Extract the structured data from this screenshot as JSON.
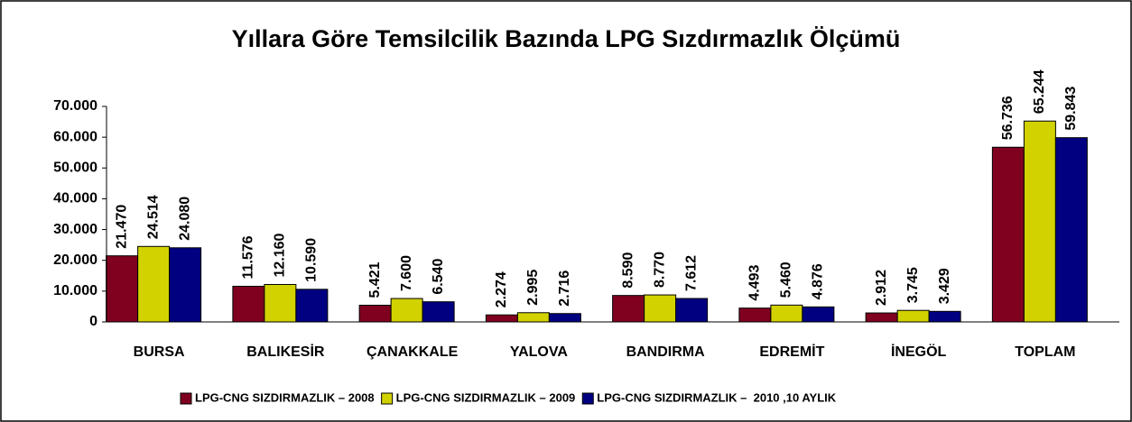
{
  "chart_data": {
    "type": "bar",
    "title": "Yıllara Göre Temsilcilik Bazında LPG Sızdırmazlık Ölçümü",
    "categories": [
      "BURSA",
      "BALIKESİR",
      "ÇANAKKALE",
      "YALOVA",
      "BANDIRMA",
      "EDREMİT",
      "İNEGÖL",
      "TOPLAM"
    ],
    "series": [
      {
        "name": "LPG-CNG SIZDIRMAZLIK – 2008",
        "color": "#800020",
        "values": [
          21470,
          11576,
          5421,
          2274,
          8590,
          4493,
          2912,
          56736
        ],
        "value_labels": [
          "21.470",
          "11.576",
          "5.421",
          "2.274",
          "8.590",
          "4.493",
          "2.912",
          "56.736"
        ]
      },
      {
        "name": "LPG-CNG SIZDIRMAZLIK – 2009",
        "color": "#d2d200",
        "values": [
          24514,
          12160,
          7600,
          2995,
          8770,
          5460,
          3745,
          65244
        ],
        "value_labels": [
          "24.514",
          "12.160",
          "7.600",
          "2.995",
          "8.770",
          "5.460",
          "3.745",
          "65.244"
        ]
      },
      {
        "name": "LPG-CNG SIZDIRMAZLIK –  2010 ,10 AYLIK",
        "color": "#000080",
        "values": [
          24080,
          10590,
          6540,
          2716,
          7612,
          4876,
          3429,
          59843
        ],
        "value_labels": [
          "24.080",
          "10.590",
          "6.540",
          "2.716",
          "7.612",
          "4.876",
          "3.429",
          "59.843"
        ]
      }
    ],
    "ylim": [
      0,
      70000
    ],
    "yticks": [
      0,
      {
        "value": 10000,
        "label": "10.000"
      },
      {
        "value": 20000,
        "label": "20.000"
      },
      {
        "value": 30000,
        "label": "30.000"
      },
      {
        "value": 40000,
        "label": "40.000"
      },
      {
        "value": 50000,
        "label": "50.000"
      },
      {
        "value": 60000,
        "label": "60.000"
      },
      {
        "value": 70000,
        "label": "70.000"
      }
    ],
    "grid": false,
    "legend": "bottom"
  }
}
